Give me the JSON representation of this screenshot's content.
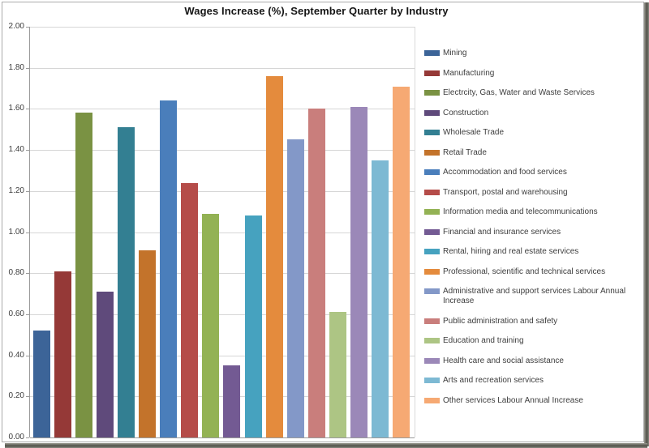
{
  "chart_data": {
    "type": "bar",
    "title": "Wages Increase (%), September Quarter by Industry",
    "xlabel": "",
    "ylabel": "",
    "ylim": [
      0.0,
      2.0
    ],
    "ytick_step": 0.2,
    "ytick_labels": [
      "2.00",
      "1.80",
      "1.60",
      "1.40",
      "1.20",
      "1.00",
      "0.80",
      "0.60",
      "0.40",
      "0.20",
      "0.00"
    ],
    "grid": true,
    "legend_position": "right",
    "series": [
      {
        "name": "Mining",
        "value": 0.52,
        "color": "#3C6498"
      },
      {
        "name": "Manufacturing",
        "value": 0.81,
        "color": "#953937"
      },
      {
        "name": "Electrcity, Gas, Water and Waste Services",
        "value": 1.58,
        "color": "#7A9243"
      },
      {
        "name": "Construction",
        "value": 0.71,
        "color": "#5F4A7B"
      },
      {
        "name": "Wholesale Trade",
        "value": 1.51,
        "color": "#337F92"
      },
      {
        "name": "Retail Trade",
        "value": 0.91,
        "color": "#C3732B"
      },
      {
        "name": "Accommodation and food services",
        "value": 1.64,
        "color": "#4A7EBB"
      },
      {
        "name": "Transport, postal and warehousing",
        "value": 1.24,
        "color": "#B54C49"
      },
      {
        "name": "Information media and telecommunications",
        "value": 1.09,
        "color": "#93B254"
      },
      {
        "name": "Financial and insurance services",
        "value": 0.35,
        "color": "#735A93"
      },
      {
        "name": "Rental, hiring and real estate services",
        "value": 1.08,
        "color": "#46A2BF"
      },
      {
        "name": "Professional, scientific and technical services",
        "value": 1.76,
        "color": "#E48B3D"
      },
      {
        "name": "Administrative and support  services Labour Annual Increase",
        "value": 1.45,
        "color": "#8398C8"
      },
      {
        "name": "Public administration and safety",
        "value": 1.6,
        "color": "#C97E7C"
      },
      {
        "name": "Education and training",
        "value": 0.61,
        "color": "#ADC584"
      },
      {
        "name": "Health care and social assistance",
        "value": 1.61,
        "color": "#9B88B8"
      },
      {
        "name": "Arts and recreation services",
        "value": 1.35,
        "color": "#7DB9D3"
      },
      {
        "name": "Other services Labour Annual Increase",
        "value": 1.71,
        "color": "#F6A973"
      }
    ]
  }
}
